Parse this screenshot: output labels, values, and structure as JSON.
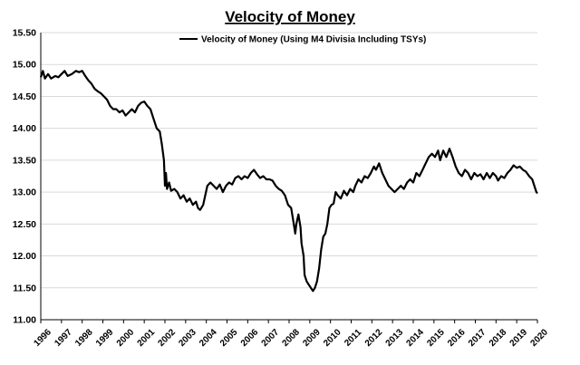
{
  "chart_data": {
    "type": "line",
    "title": "Velocity of Money",
    "legend_position": "top-center",
    "grid": {
      "horizontal": true,
      "vertical": false
    },
    "xlabel": "",
    "ylabel": "",
    "ylim": [
      11.0,
      15.5
    ],
    "xlim": [
      1996,
      2020
    ],
    "y_ticks": [
      "11.00",
      "11.50",
      "12.00",
      "12.50",
      "13.00",
      "13.50",
      "14.00",
      "14.50",
      "15.00",
      "15.50"
    ],
    "x_ticks": [
      "1996",
      "1997",
      "1998",
      "1999",
      "2000",
      "2001",
      "2002",
      "2003",
      "2004",
      "2005",
      "2006",
      "2007",
      "2008",
      "2009",
      "2010",
      "2011",
      "2012",
      "2013",
      "2014",
      "2015",
      "2016",
      "2017",
      "2018",
      "2019",
      "2020"
    ],
    "series": [
      {
        "name": "Velocity of Money (Using M4 Divisia Including TSYs)",
        "color": "#000000",
        "points": [
          [
            1996.0,
            14.8
          ],
          [
            1996.1,
            14.9
          ],
          [
            1996.2,
            14.78
          ],
          [
            1996.35,
            14.85
          ],
          [
            1996.5,
            14.78
          ],
          [
            1996.7,
            14.82
          ],
          [
            1996.85,
            14.8
          ],
          [
            1997.0,
            14.85
          ],
          [
            1997.15,
            14.9
          ],
          [
            1997.3,
            14.82
          ],
          [
            1997.5,
            14.85
          ],
          [
            1997.7,
            14.9
          ],
          [
            1997.85,
            14.88
          ],
          [
            1998.0,
            14.9
          ],
          [
            1998.15,
            14.82
          ],
          [
            1998.3,
            14.75
          ],
          [
            1998.45,
            14.7
          ],
          [
            1998.6,
            14.62
          ],
          [
            1998.75,
            14.58
          ],
          [
            1998.9,
            14.55
          ],
          [
            1999.05,
            14.5
          ],
          [
            1999.2,
            14.45
          ],
          [
            1999.35,
            14.35
          ],
          [
            1999.5,
            14.3
          ],
          [
            1999.65,
            14.3
          ],
          [
            1999.8,
            14.25
          ],
          [
            1999.95,
            14.28
          ],
          [
            2000.1,
            14.2
          ],
          [
            2000.25,
            14.25
          ],
          [
            2000.4,
            14.3
          ],
          [
            2000.55,
            14.25
          ],
          [
            2000.7,
            14.35
          ],
          [
            2000.85,
            14.4
          ],
          [
            2001.0,
            14.42
          ],
          [
            2001.15,
            14.35
          ],
          [
            2001.3,
            14.3
          ],
          [
            2001.45,
            14.15
          ],
          [
            2001.6,
            14.0
          ],
          [
            2001.75,
            13.95
          ],
          [
            2001.85,
            13.75
          ],
          [
            2001.95,
            13.5
          ],
          [
            2002.0,
            13.1
          ],
          [
            2002.05,
            13.3
          ],
          [
            2002.1,
            13.05
          ],
          [
            2002.2,
            13.15
          ],
          [
            2002.3,
            13.02
          ],
          [
            2002.45,
            13.05
          ],
          [
            2002.6,
            13.0
          ],
          [
            2002.75,
            12.9
          ],
          [
            2002.9,
            12.95
          ],
          [
            2003.05,
            12.85
          ],
          [
            2003.2,
            12.9
          ],
          [
            2003.35,
            12.8
          ],
          [
            2003.5,
            12.85
          ],
          [
            2003.6,
            12.75
          ],
          [
            2003.7,
            12.72
          ],
          [
            2003.85,
            12.8
          ],
          [
            2003.95,
            12.95
          ],
          [
            2004.05,
            13.1
          ],
          [
            2004.2,
            13.15
          ],
          [
            2004.35,
            13.1
          ],
          [
            2004.5,
            13.05
          ],
          [
            2004.65,
            13.12
          ],
          [
            2004.8,
            13.0
          ],
          [
            2004.95,
            13.1
          ],
          [
            2005.1,
            13.15
          ],
          [
            2005.25,
            13.12
          ],
          [
            2005.4,
            13.22
          ],
          [
            2005.55,
            13.25
          ],
          [
            2005.7,
            13.2
          ],
          [
            2005.85,
            13.25
          ],
          [
            2006.0,
            13.22
          ],
          [
            2006.15,
            13.3
          ],
          [
            2006.3,
            13.35
          ],
          [
            2006.45,
            13.28
          ],
          [
            2006.6,
            13.22
          ],
          [
            2006.75,
            13.25
          ],
          [
            2006.9,
            13.2
          ],
          [
            2007.05,
            13.2
          ],
          [
            2007.2,
            13.18
          ],
          [
            2007.35,
            13.1
          ],
          [
            2007.5,
            13.05
          ],
          [
            2007.65,
            13.02
          ],
          [
            2007.8,
            12.95
          ],
          [
            2007.95,
            12.8
          ],
          [
            2008.1,
            12.75
          ],
          [
            2008.2,
            12.55
          ],
          [
            2008.3,
            12.35
          ],
          [
            2008.35,
            12.5
          ],
          [
            2008.45,
            12.65
          ],
          [
            2008.55,
            12.45
          ],
          [
            2008.6,
            12.2
          ],
          [
            2008.7,
            12.0
          ],
          [
            2008.75,
            11.7
          ],
          [
            2008.85,
            11.6
          ],
          [
            2008.95,
            11.55
          ],
          [
            2009.05,
            11.5
          ],
          [
            2009.15,
            11.45
          ],
          [
            2009.25,
            11.5
          ],
          [
            2009.35,
            11.6
          ],
          [
            2009.45,
            11.8
          ],
          [
            2009.55,
            12.1
          ],
          [
            2009.65,
            12.3
          ],
          [
            2009.75,
            12.35
          ],
          [
            2009.85,
            12.5
          ],
          [
            2009.95,
            12.75
          ],
          [
            2010.05,
            12.8
          ],
          [
            2010.15,
            12.82
          ],
          [
            2010.25,
            13.0
          ],
          [
            2010.35,
            12.95
          ],
          [
            2010.5,
            12.9
          ],
          [
            2010.65,
            13.02
          ],
          [
            2010.8,
            12.95
          ],
          [
            2010.95,
            13.05
          ],
          [
            2011.1,
            13.0
          ],
          [
            2011.2,
            13.1
          ],
          [
            2011.35,
            13.2
          ],
          [
            2011.5,
            13.15
          ],
          [
            2011.65,
            13.25
          ],
          [
            2011.8,
            13.22
          ],
          [
            2011.95,
            13.3
          ],
          [
            2012.1,
            13.4
          ],
          [
            2012.2,
            13.35
          ],
          [
            2012.35,
            13.45
          ],
          [
            2012.5,
            13.3
          ],
          [
            2012.65,
            13.2
          ],
          [
            2012.8,
            13.1
          ],
          [
            2012.95,
            13.05
          ],
          [
            2013.1,
            13.0
          ],
          [
            2013.25,
            13.05
          ],
          [
            2013.4,
            13.1
          ],
          [
            2013.55,
            13.05
          ],
          [
            2013.7,
            13.15
          ],
          [
            2013.85,
            13.2
          ],
          [
            2014.0,
            13.15
          ],
          [
            2014.15,
            13.3
          ],
          [
            2014.3,
            13.25
          ],
          [
            2014.45,
            13.35
          ],
          [
            2014.6,
            13.45
          ],
          [
            2014.75,
            13.55
          ],
          [
            2014.9,
            13.6
          ],
          [
            2015.05,
            13.55
          ],
          [
            2015.2,
            13.65
          ],
          [
            2015.3,
            13.5
          ],
          [
            2015.45,
            13.65
          ],
          [
            2015.6,
            13.55
          ],
          [
            2015.75,
            13.68
          ],
          [
            2015.9,
            13.55
          ],
          [
            2016.05,
            13.4
          ],
          [
            2016.2,
            13.3
          ],
          [
            2016.35,
            13.25
          ],
          [
            2016.5,
            13.35
          ],
          [
            2016.65,
            13.3
          ],
          [
            2016.8,
            13.2
          ],
          [
            2016.95,
            13.3
          ],
          [
            2017.1,
            13.25
          ],
          [
            2017.25,
            13.28
          ],
          [
            2017.4,
            13.2
          ],
          [
            2017.55,
            13.3
          ],
          [
            2017.7,
            13.22
          ],
          [
            2017.85,
            13.3
          ],
          [
            2018.0,
            13.25
          ],
          [
            2018.1,
            13.18
          ],
          [
            2018.25,
            13.25
          ],
          [
            2018.4,
            13.22
          ],
          [
            2018.55,
            13.3
          ],
          [
            2018.7,
            13.35
          ],
          [
            2018.85,
            13.42
          ],
          [
            2019.0,
            13.38
          ],
          [
            2019.15,
            13.4
          ],
          [
            2019.3,
            13.35
          ],
          [
            2019.45,
            13.32
          ],
          [
            2019.6,
            13.25
          ],
          [
            2019.75,
            13.2
          ],
          [
            2019.85,
            13.1
          ],
          [
            2019.95,
            13.0
          ],
          [
            2020.0,
            12.98
          ]
        ]
      }
    ]
  }
}
